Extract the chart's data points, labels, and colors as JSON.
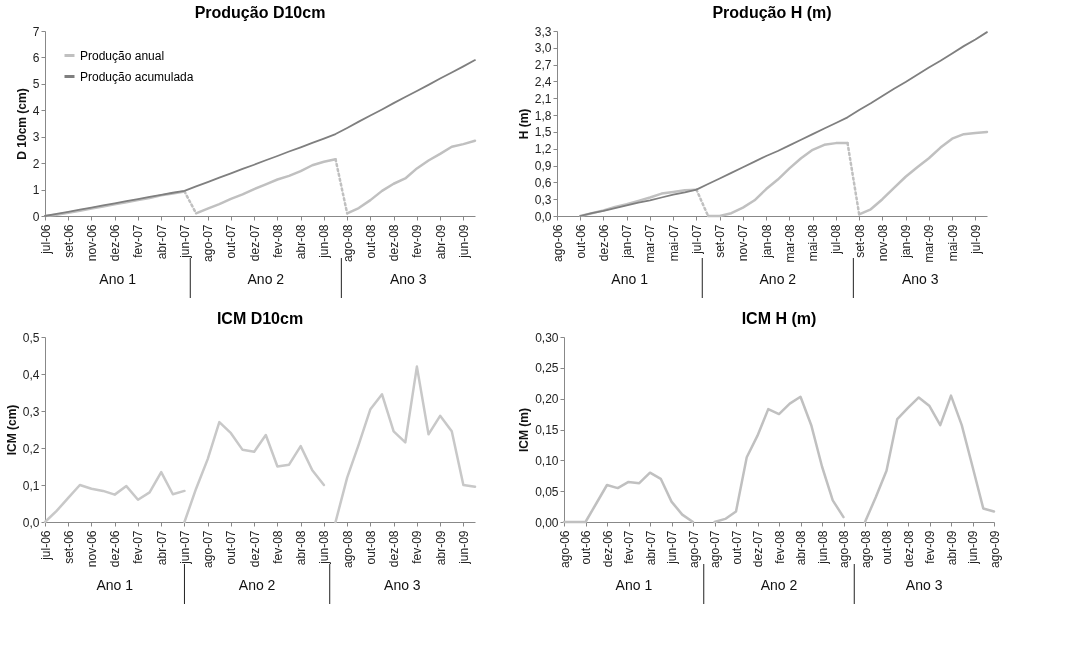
{
  "chart_data": [
    {
      "type": "line",
      "title": "Produção  D10cm",
      "ylabel": "D 10cm (cm)",
      "legend": "top left",
      "categories": [
        "jul-06",
        null,
        "set-06",
        null,
        "nov-06",
        null,
        "dez-06",
        null,
        "fev-07",
        null,
        "abr-07",
        null,
        "jun-07",
        null,
        "ago-07",
        null,
        "out-07",
        null,
        "dez-07",
        null,
        "fev-08",
        null,
        "abr-08",
        null,
        "jun-08",
        null,
        "ago-08",
        null,
        "out-08",
        null,
        "dez-08",
        null,
        "fev-09",
        null,
        "abr-09",
        null,
        "jun-09",
        null
      ],
      "ylim": [
        0,
        7
      ],
      "yticks": [
        0,
        1,
        2,
        3,
        4,
        5,
        6,
        7
      ],
      "series": [
        {
          "name": "Produção anual",
          "color": "#c0c0c0",
          "values": [
            0,
            0.05,
            0.12,
            0.2,
            0.28,
            0.36,
            0.44,
            0.52,
            0.6,
            0.68,
            0.78,
            0.85,
            0.93,
            null,
            null,
            null,
            null,
            null,
            null,
            null,
            null,
            null,
            null,
            null,
            null,
            null,
            null,
            null,
            null,
            null,
            null,
            null,
            null,
            null,
            null,
            null,
            null,
            null
          ]
        },
        {
          "color": "#c0c0c0",
          "values": [
            null,
            null,
            null,
            null,
            null,
            null,
            null,
            null,
            null,
            null,
            null,
            null,
            null,
            0.1,
            0.28,
            0.45,
            0.65,
            0.82,
            1.02,
            1.2,
            1.38,
            1.52,
            1.7,
            1.92,
            2.05,
            2.15,
            null,
            null,
            null,
            null,
            null,
            null,
            null,
            null,
            null,
            null,
            null,
            null
          ]
        },
        {
          "color": "#c0c0c0",
          "values": [
            null,
            null,
            null,
            null,
            null,
            null,
            null,
            null,
            null,
            null,
            null,
            null,
            null,
            null,
            null,
            null,
            null,
            null,
            null,
            null,
            null,
            null,
            null,
            null,
            null,
            null,
            0.1,
            0.3,
            0.6,
            0.95,
            1.22,
            1.42,
            1.8,
            2.1,
            2.35,
            2.62,
            2.72,
            2.85
          ]
        },
        {
          "color": "#c0c0c0",
          "line_style": "dotted",
          "values": [
            null,
            null,
            null,
            null,
            null,
            null,
            null,
            null,
            null,
            null,
            null,
            null,
            0.93,
            0.1,
            null,
            null,
            null,
            null,
            null,
            null,
            null,
            null,
            null,
            null,
            null,
            2.15,
            0.1,
            null,
            null,
            null,
            null,
            null,
            null,
            null,
            null,
            null,
            null,
            null
          ]
        },
        {
          "name": "Produção acumulada",
          "color": "#7f7f7f",
          "values": [
            0,
            0.08,
            0.16,
            0.24,
            0.32,
            0.4,
            0.48,
            0.56,
            0.64,
            0.72,
            0.8,
            0.88,
            0.95,
            1.12,
            1.28,
            1.45,
            1.61,
            1.78,
            1.94,
            2.11,
            2.27,
            2.44,
            2.6,
            2.77,
            2.93,
            3.1,
            3.33,
            3.57,
            3.8,
            4.03,
            4.27,
            4.5,
            4.73,
            4.96,
            5.2,
            5.43,
            5.66,
            5.9
          ]
        }
      ],
      "annotations": [
        "Ano 1",
        "Ano 2",
        "Ano 3"
      ]
    },
    {
      "type": "line",
      "title": "Produção  H (m)",
      "ylabel": "H (m)",
      "legend": "top left",
      "categories": [
        "ago-06",
        null,
        "out-06",
        null,
        "dez-06",
        null,
        "jan-07",
        null,
        "mar-07",
        null,
        "mai-07",
        null,
        "jul-07",
        null,
        "set-07",
        null,
        "nov-07",
        null,
        "jan-08",
        null,
        "mar-08",
        null,
        "mai-08",
        null,
        "jul-08",
        null,
        "set-08",
        null,
        "nov-08",
        null,
        "jan-09",
        null,
        "mar-09",
        null,
        "mai-09",
        null,
        "jul-09",
        null
      ],
      "ylim": [
        0,
        3.3
      ],
      "yticks": [
        {
          "value": 0,
          "label": "0,0"
        },
        {
          "value": 0.3,
          "label": "0,3"
        },
        {
          "value": 0.6,
          "label": "0,6"
        },
        {
          "value": 0.9,
          "label": "0,9"
        },
        {
          "value": 1.2,
          "label": "1,2"
        },
        {
          "value": 1.5,
          "label": "1,5"
        },
        {
          "value": 1.8,
          "label": "1,8"
        },
        {
          "value": 2.1,
          "label": "2,1"
        },
        {
          "value": 2.4,
          "label": "2,4"
        },
        {
          "value": 2.7,
          "label": "2,7"
        },
        {
          "value": 3.0,
          "label": "3,0"
        },
        {
          "value": 3.3,
          "label": "3,3"
        }
      ],
      "series": [
        {
          "name": "Produção anual",
          "color": "#c0c0c0",
          "values": [
            null,
            null,
            0,
            0.05,
            0.1,
            0.16,
            0.21,
            0.27,
            0.33,
            0.4,
            0.43,
            0.46,
            0.47,
            null,
            null,
            null,
            null,
            null,
            null,
            null,
            null,
            null,
            null,
            null,
            null,
            null,
            null,
            null,
            null,
            null,
            null,
            null,
            null,
            null,
            null,
            null,
            null,
            null
          ]
        },
        {
          "color": "#c0c0c0",
          "values": [
            null,
            null,
            null,
            null,
            null,
            null,
            null,
            null,
            null,
            null,
            null,
            null,
            null,
            0,
            0,
            0.05,
            0.15,
            0.28,
            0.48,
            0.65,
            0.85,
            1.03,
            1.18,
            1.27,
            1.3,
            1.3,
            null,
            null,
            null,
            null,
            null,
            null,
            null,
            null,
            null,
            null,
            null,
            null
          ]
        },
        {
          "color": "#c0c0c0",
          "values": [
            null,
            null,
            null,
            null,
            null,
            null,
            null,
            null,
            null,
            null,
            null,
            null,
            null,
            null,
            null,
            null,
            null,
            null,
            null,
            null,
            null,
            null,
            null,
            null,
            null,
            null,
            0.03,
            0.12,
            0.3,
            0.5,
            0.7,
            0.87,
            1.03,
            1.22,
            1.38,
            1.46,
            1.48,
            1.5
          ]
        },
        {
          "color": "#c0c0c0",
          "line_style": "dotted",
          "values": [
            null,
            null,
            null,
            null,
            null,
            null,
            null,
            null,
            null,
            null,
            null,
            null,
            0.47,
            0,
            null,
            null,
            null,
            null,
            null,
            null,
            null,
            null,
            null,
            null,
            null,
            1.3,
            0.03,
            null,
            null,
            null,
            null,
            null,
            null,
            null,
            null,
            null,
            null,
            null
          ]
        },
        {
          "name": "Produção acumulada",
          "color": "#7f7f7f",
          "values": [
            null,
            null,
            0,
            0.05,
            0.09,
            0.14,
            0.19,
            0.24,
            0.28,
            0.33,
            0.38,
            0.42,
            0.47,
            0.57,
            0.67,
            0.77,
            0.87,
            0.97,
            1.07,
            1.16,
            1.26,
            1.36,
            1.46,
            1.56,
            1.66,
            1.76,
            1.89,
            2.01,
            2.14,
            2.27,
            2.39,
            2.52,
            2.65,
            2.77,
            2.9,
            3.03,
            3.15,
            3.28
          ]
        }
      ],
      "annotations": [
        "Ano 1",
        "Ano 2",
        "Ano 3"
      ]
    },
    {
      "type": "line",
      "title": "ICM D10cm",
      "ylabel": "ICM (cm)",
      "categories": [
        "jul-06",
        null,
        "set-06",
        null,
        "nov-06",
        null,
        "dez-06",
        null,
        "fev-07",
        null,
        "abr-07",
        null,
        "jun-07",
        null,
        "ago-07",
        null,
        "out-07",
        null,
        "dez-07",
        null,
        "fev-08",
        null,
        "abr-08",
        null,
        "jun-08",
        null,
        "ago-08",
        null,
        "out-08",
        null,
        "dez-08",
        null,
        "fev-09",
        null,
        "abr-09",
        null,
        "jun-09",
        null
      ],
      "ylim": [
        0,
        0.5
      ],
      "yticks": [
        {
          "value": 0,
          "label": "0,0"
        },
        {
          "value": 0.1,
          "label": "0,1"
        },
        {
          "value": 0.2,
          "label": "0,2"
        },
        {
          "value": 0.3,
          "label": "0,3"
        },
        {
          "value": 0.4,
          "label": "0,4"
        },
        {
          "value": 0.5,
          "label": "0,5"
        }
      ],
      "series": [
        {
          "color": "#c8c8c8",
          "values": [
            0,
            0.03,
            0.065,
            0.1,
            0.09,
            0.084,
            0.074,
            0.097,
            0.06,
            0.08,
            0.135,
            0.075,
            0.084,
            null,
            null,
            null,
            null,
            null,
            null,
            null,
            null,
            null,
            null,
            null,
            null,
            null,
            null,
            null,
            null,
            null,
            null,
            null,
            null,
            null,
            null,
            null,
            null,
            null
          ]
        },
        {
          "color": "#c8c8c8",
          "values": [
            null,
            null,
            null,
            null,
            null,
            null,
            null,
            null,
            null,
            null,
            null,
            null,
            0,
            0.09,
            0.17,
            0.27,
            0.24,
            0.195,
            0.19,
            0.235,
            0.15,
            0.155,
            0.205,
            0.14,
            0.1,
            null,
            null,
            null,
            null,
            null,
            null,
            null,
            null,
            null,
            null,
            null,
            null,
            null
          ]
        },
        {
          "color": "#c8c8c8",
          "values": [
            null,
            null,
            null,
            null,
            null,
            null,
            null,
            null,
            null,
            null,
            null,
            null,
            null,
            null,
            null,
            null,
            null,
            null,
            null,
            null,
            null,
            null,
            null,
            null,
            null,
            0,
            0.12,
            0.21,
            0.305,
            0.345,
            0.245,
            0.215,
            0.42,
            0.237,
            0.287,
            0.245,
            0.1,
            0.095
          ]
        }
      ],
      "annotations": [
        "Ano 1",
        "Ano 2",
        "Ano 3"
      ]
    },
    {
      "type": "line",
      "title": "ICM H (m)",
      "ylabel": "ICM (m)",
      "categories": [
        "ago-06",
        null,
        "out-06",
        null,
        "dez-06",
        null,
        "fev-07",
        null,
        "abr-07",
        null,
        "jun-07",
        null,
        "ago-07",
        null,
        "ago-07",
        null,
        "out-07",
        null,
        "dez-07",
        null,
        "fev-08",
        null,
        "abr-08",
        null,
        "jun-08",
        null,
        "ago-08",
        null,
        "ago-08",
        null,
        "out-08",
        null,
        "dez-08",
        null,
        "fev-09",
        null,
        "abr-09",
        null,
        "jun-09",
        null,
        "ago-09"
      ],
      "ylim": [
        0,
        0.3
      ],
      "yticks": [
        {
          "value": 0,
          "label": "0,00"
        },
        {
          "value": 0.05,
          "label": "0,05"
        },
        {
          "value": 0.1,
          "label": "0,10"
        },
        {
          "value": 0.15,
          "label": "0,15"
        },
        {
          "value": 0.2,
          "label": "0,20"
        },
        {
          "value": 0.25,
          "label": "0,25"
        },
        {
          "value": 0.3,
          "label": "0,30"
        }
      ],
      "series": [
        {
          "color": "#c0c0c0",
          "values": [
            0,
            0,
            0,
            0.03,
            0.06,
            0.055,
            0.065,
            0.063,
            0.08,
            0.07,
            0.033,
            0.012,
            0,
            null,
            null,
            null,
            null,
            null,
            null,
            null,
            null,
            null,
            null,
            null,
            null,
            null,
            null,
            null,
            null,
            null,
            null,
            null,
            null,
            null,
            null,
            null,
            null,
            null,
            null,
            null,
            null
          ]
        },
        {
          "color": "#c0c0c0",
          "values": [
            null,
            null,
            null,
            null,
            null,
            null,
            null,
            null,
            null,
            null,
            null,
            null,
            null,
            null,
            0,
            0.005,
            0.017,
            0.105,
            0.14,
            0.183,
            0.175,
            0.192,
            0.203,
            0.157,
            0.09,
            0.035,
            0.008,
            null,
            null,
            null,
            null,
            null,
            null,
            null,
            null,
            null,
            null,
            null,
            null,
            null,
            null
          ]
        },
        {
          "color": "#c0c0c0",
          "values": [
            null,
            null,
            null,
            null,
            null,
            null,
            null,
            null,
            null,
            null,
            null,
            null,
            null,
            null,
            null,
            null,
            null,
            null,
            null,
            null,
            null,
            null,
            null,
            null,
            null,
            null,
            null,
            null,
            0,
            0.04,
            0.083,
            0.167,
            0.185,
            0.202,
            0.188,
            0.157,
            0.205,
            0.157,
            0.09,
            0.022,
            0.017
          ]
        }
      ],
      "annotations": [
        "Ano 1",
        "Ano 2",
        "Ano 3"
      ]
    }
  ]
}
